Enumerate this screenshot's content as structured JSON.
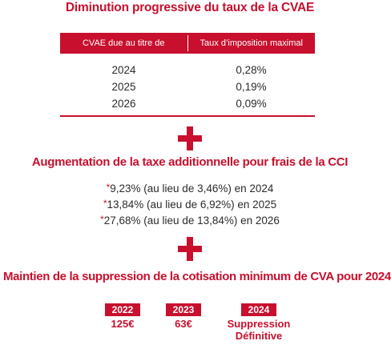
{
  "section1": {
    "title": "Diminution progressive du taux de la CVAE",
    "table": {
      "headers": [
        "CVAE due au titre de",
        "Taux d’imposition maximal"
      ],
      "rows": [
        [
          "2024",
          "0,28%"
        ],
        [
          "2025",
          "0,19%"
        ],
        [
          "2026",
          "0,09%"
        ]
      ]
    }
  },
  "section2": {
    "title": "Augmentation de la taxe additionnelle pour frais de la CCI",
    "marker": "*",
    "items": [
      "9,23% (au lieu de 3,46%) en 2024",
      "13,84% (au lieu de 6,92%) en 2025",
      "27,68% (au lieu de 13,84%) en 2026"
    ]
  },
  "section3": {
    "title": "Maintien de la suppression de la cotisation minimum de CVA pour 2024",
    "items": [
      {
        "year": "2022",
        "value": "125€"
      },
      {
        "year": "2023",
        "value": "63€"
      },
      {
        "year": "2024",
        "value": "Suppression",
        "value2": "Définitive"
      }
    ]
  },
  "colors": {
    "accent": "#c8102e",
    "text": "#2b2b2b"
  }
}
